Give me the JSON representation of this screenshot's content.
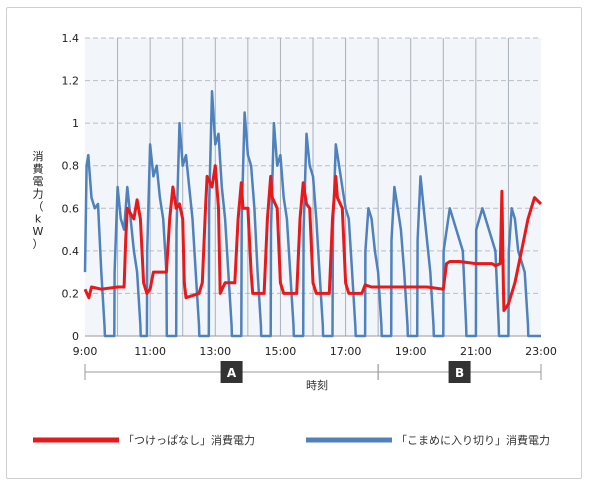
{
  "chart_data": {
    "type": "line",
    "ylabel": "消費電力（kW）",
    "xlabel": "時刻",
    "ylim": [
      0,
      1.4
    ],
    "xlim": [
      9,
      23
    ],
    "y_ticks": [
      0,
      0.2,
      0.4,
      0.6,
      0.8,
      1,
      1.2,
      1.4
    ],
    "y_tick_labels": [
      "0",
      "0.2",
      "0.4",
      "0.6",
      "0.8",
      "1",
      "1.2",
      "1.4"
    ],
    "x_ticks": [
      9,
      11,
      13,
      15,
      17,
      19,
      21,
      23
    ],
    "x_tick_labels": [
      "9:00",
      "11:00",
      "13:00",
      "15:00",
      "17:00",
      "19:00",
      "21:00",
      "23:00"
    ],
    "grid": true,
    "periods": [
      {
        "label": "A",
        "start": 9,
        "end": 18
      },
      {
        "label": "B",
        "start": 18,
        "end": 23
      }
    ],
    "legend_position": "bottom",
    "series": [
      {
        "name": "「つけっぱなし」消費電力",
        "color": "#e8191b",
        "x": [
          9.0,
          9.12,
          9.2,
          9.5,
          10.0,
          10.2,
          10.25,
          10.3,
          10.5,
          10.6,
          10.7,
          10.8,
          10.9,
          11.0,
          11.1,
          11.15,
          11.5,
          11.6,
          11.7,
          11.8,
          11.9,
          12.0,
          12.05,
          12.1,
          12.5,
          12.6,
          12.7,
          12.75,
          12.9,
          13.0,
          13.1,
          13.15,
          13.3,
          13.6,
          13.7,
          13.8,
          13.85,
          14.0,
          14.1,
          14.15,
          14.5,
          14.6,
          14.7,
          14.75,
          14.9,
          15.0,
          15.1,
          15.15,
          15.5,
          15.6,
          15.7,
          15.8,
          15.9,
          16.0,
          16.1,
          16.15,
          16.5,
          16.6,
          16.7,
          16.75,
          16.9,
          17.0,
          17.1,
          17.15,
          17.5,
          17.6,
          17.8,
          18.0,
          18.5,
          19.0,
          19.5,
          20.0,
          20.1,
          20.2,
          20.5,
          21.0,
          21.5,
          21.6,
          21.75,
          21.8,
          21.85,
          21.86,
          22.0,
          22.2,
          22.4,
          22.6,
          22.8,
          23.0
        ],
        "y": [
          0.22,
          0.18,
          0.23,
          0.22,
          0.23,
          0.23,
          0.45,
          0.6,
          0.55,
          0.64,
          0.55,
          0.25,
          0.2,
          0.22,
          0.3,
          0.3,
          0.3,
          0.55,
          0.7,
          0.6,
          0.62,
          0.55,
          0.25,
          0.18,
          0.2,
          0.25,
          0.6,
          0.75,
          0.7,
          0.8,
          0.6,
          0.2,
          0.25,
          0.25,
          0.55,
          0.72,
          0.6,
          0.6,
          0.3,
          0.2,
          0.2,
          0.55,
          0.75,
          0.65,
          0.6,
          0.25,
          0.2,
          0.2,
          0.2,
          0.55,
          0.72,
          0.62,
          0.6,
          0.25,
          0.2,
          0.2,
          0.2,
          0.55,
          0.75,
          0.65,
          0.6,
          0.25,
          0.2,
          0.2,
          0.2,
          0.24,
          0.23,
          0.23,
          0.23,
          0.23,
          0.23,
          0.22,
          0.34,
          0.35,
          0.35,
          0.34,
          0.34,
          0.33,
          0.34,
          0.68,
          0.2,
          0.12,
          0.15,
          0.25,
          0.4,
          0.55,
          0.65,
          0.62
        ]
      },
      {
        "name": "「こまめに入り切り」消費電力",
        "color": "#4f81bd",
        "x": [
          9.0,
          9.05,
          9.1,
          9.2,
          9.3,
          9.4,
          9.5,
          9.6,
          9.61,
          9.9,
          9.91,
          10.0,
          10.1,
          10.2,
          10.3,
          10.4,
          10.5,
          10.6,
          10.7,
          10.71,
          10.9,
          10.91,
          11.0,
          11.1,
          11.2,
          11.3,
          11.4,
          11.5,
          11.51,
          11.8,
          11.81,
          11.9,
          12.0,
          12.1,
          12.2,
          12.3,
          12.4,
          12.5,
          12.51,
          12.8,
          12.81,
          12.9,
          13.0,
          13.1,
          13.2,
          13.3,
          13.4,
          13.5,
          13.51,
          13.8,
          13.81,
          13.9,
          14.0,
          14.1,
          14.2,
          14.3,
          14.4,
          14.41,
          14.7,
          14.71,
          14.8,
          14.9,
          15.0,
          15.1,
          15.2,
          15.3,
          15.4,
          15.41,
          15.7,
          15.71,
          15.8,
          15.9,
          16.0,
          16.1,
          16.2,
          16.3,
          16.31,
          16.6,
          16.61,
          16.7,
          16.8,
          16.9,
          17.0,
          17.1,
          17.2,
          17.3,
          17.31,
          17.6,
          17.61,
          17.7,
          17.8,
          17.9,
          18.0,
          18.1,
          18.11,
          18.4,
          18.41,
          18.5,
          18.6,
          18.7,
          18.8,
          18.9,
          18.91,
          19.2,
          19.21,
          19.3,
          19.4,
          19.5,
          19.6,
          19.7,
          19.71,
          20.0,
          20.01,
          20.2,
          20.4,
          20.6,
          20.7,
          20.71,
          21.0,
          21.01,
          21.2,
          21.4,
          21.6,
          21.7,
          21.71,
          22.0,
          22.01,
          22.1,
          22.2,
          22.3,
          22.5,
          22.6,
          22.61,
          23.0
        ],
        "y": [
          0.3,
          0.8,
          0.85,
          0.65,
          0.6,
          0.62,
          0.3,
          0.05,
          0.0,
          0.0,
          0.3,
          0.7,
          0.55,
          0.5,
          0.7,
          0.55,
          0.4,
          0.3,
          0.05,
          0.0,
          0.0,
          0.4,
          0.9,
          0.75,
          0.8,
          0.65,
          0.55,
          0.3,
          0.0,
          0.0,
          0.5,
          1.0,
          0.8,
          0.85,
          0.7,
          0.55,
          0.3,
          0.05,
          0.0,
          0.0,
          0.6,
          1.15,
          0.9,
          0.95,
          0.7,
          0.55,
          0.3,
          0.05,
          0.0,
          0.0,
          0.55,
          1.05,
          0.85,
          0.8,
          0.6,
          0.3,
          0.05,
          0.0,
          0.0,
          0.5,
          1.0,
          0.8,
          0.85,
          0.65,
          0.55,
          0.3,
          0.05,
          0.0,
          0.0,
          0.5,
          0.95,
          0.8,
          0.75,
          0.55,
          0.3,
          0.05,
          0.0,
          0.0,
          0.5,
          0.9,
          0.8,
          0.7,
          0.6,
          0.55,
          0.3,
          0.05,
          0.0,
          0.0,
          0.4,
          0.6,
          0.55,
          0.4,
          0.3,
          0.05,
          0.0,
          0.0,
          0.45,
          0.7,
          0.6,
          0.5,
          0.3,
          0.05,
          0.0,
          0.0,
          0.45,
          0.75,
          0.6,
          0.45,
          0.3,
          0.05,
          0.0,
          0.0,
          0.4,
          0.6,
          0.5,
          0.4,
          0.05,
          0.0,
          0.0,
          0.5,
          0.6,
          0.5,
          0.4,
          0.05,
          0.0,
          0.0,
          0.4,
          0.6,
          0.55,
          0.4,
          0.3,
          0.05,
          0.0,
          0.0
        ]
      }
    ]
  }
}
